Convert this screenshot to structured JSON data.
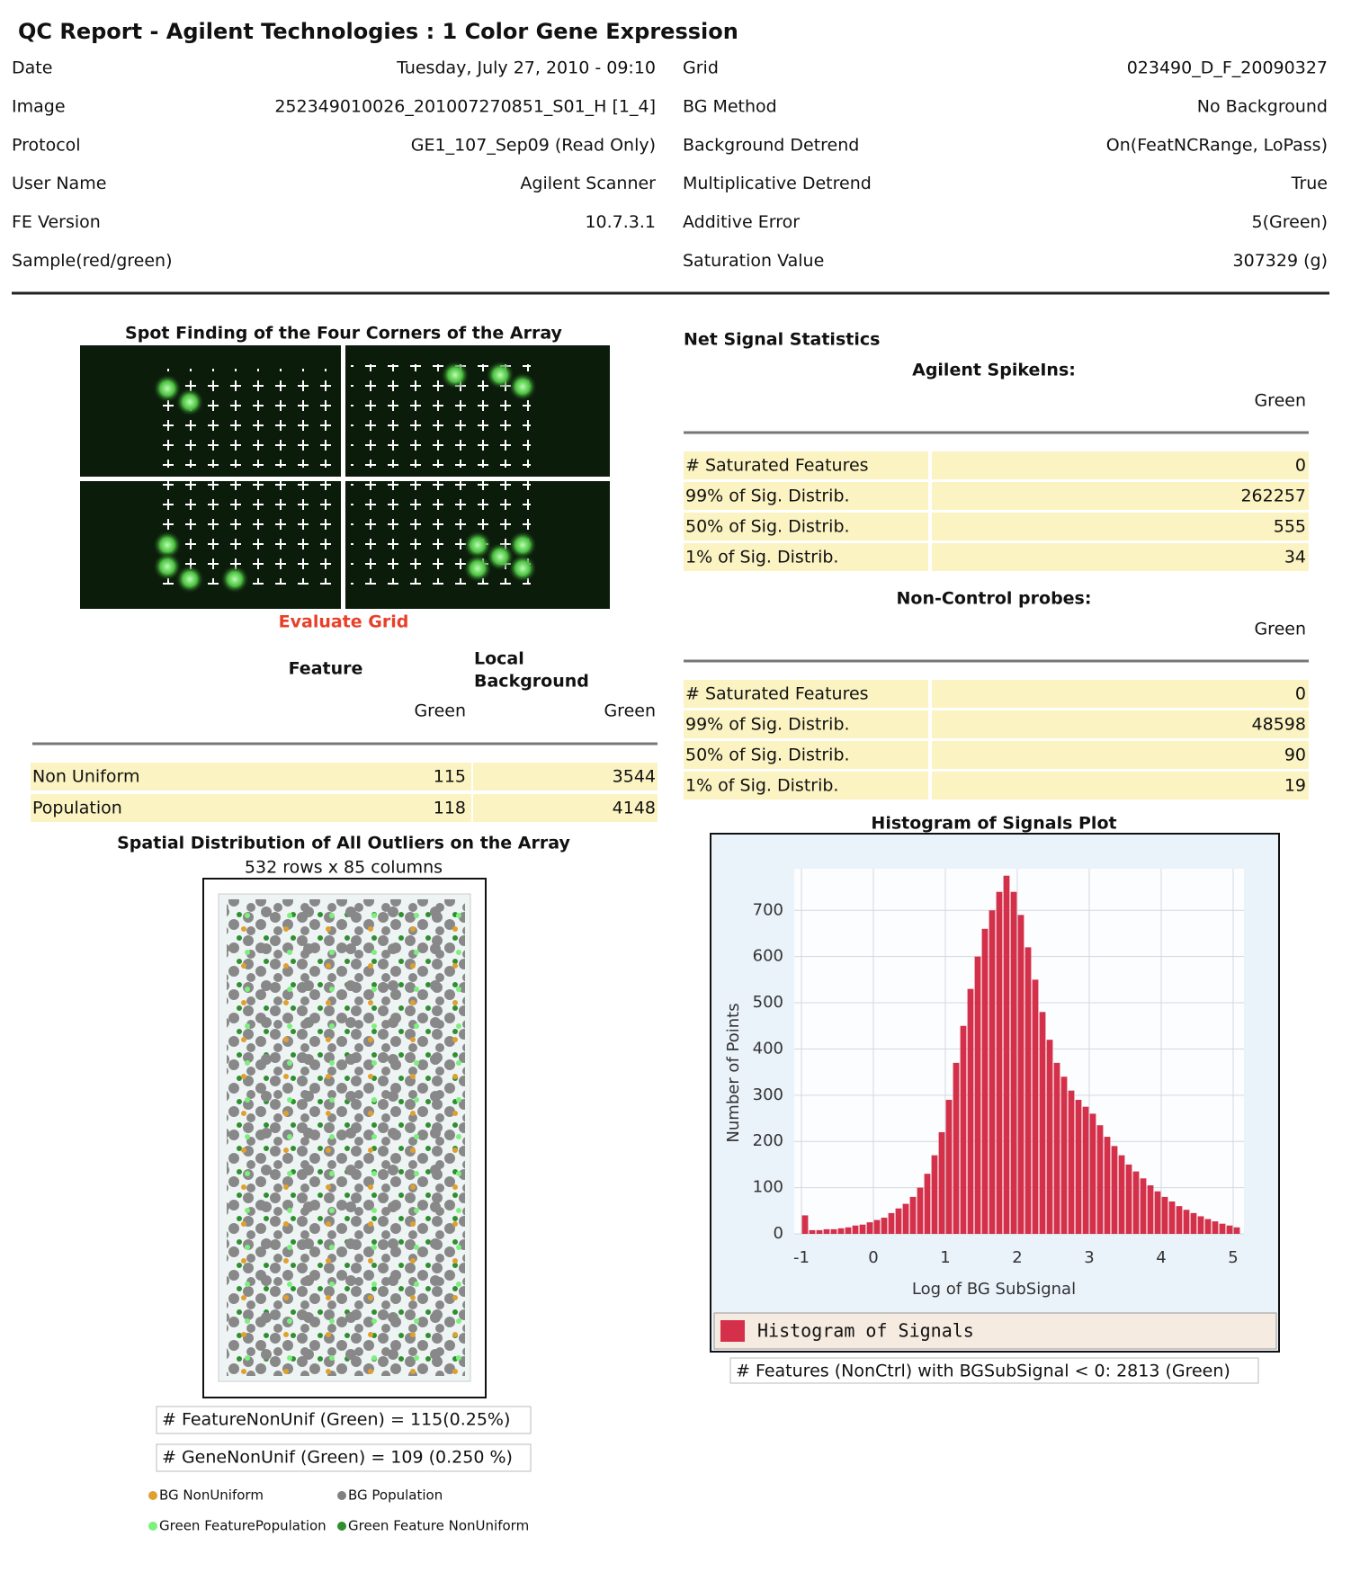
{
  "header": {
    "title": "QC Report - Agilent Technologies : 1 Color Gene Expression"
  },
  "info": {
    "left": [
      {
        "label": "Date",
        "value": "Tuesday, July 27, 2010 - 09:10"
      },
      {
        "label": "Image",
        "value": "252349010026_201007270851_S01_H [1_4]"
      },
      {
        "label": "Protocol",
        "value": "GE1_107_Sep09 (Read Only)"
      },
      {
        "label": "User Name",
        "value": "Agilent Scanner"
      },
      {
        "label": "FE Version",
        "value": "10.7.3.1"
      },
      {
        "label": "Sample(red/green)"
      }
    ],
    "right": [
      {
        "label": "Grid",
        "value": "023490_D_F_20090327"
      },
      {
        "label": "BG Method",
        "value": "No Background"
      },
      {
        "label": "Background Detrend",
        "value": "On(FeatNCRange, LoPass)"
      },
      {
        "label": "Multiplicative Detrend",
        "value": "True"
      },
      {
        "label": "Additive Error",
        "value": "5(Green)"
      },
      {
        "label": "Saturation Value",
        "value": "307329 (g)"
      }
    ]
  },
  "spot_finding": {
    "title": "Spot Finding of the Four Corners of the Array",
    "link": "Evaluate Grid"
  },
  "local_background": {
    "feature_header": "Feature",
    "background_header": [
      "Local",
      "Background"
    ],
    "subheaders": [
      "Green",
      "Green"
    ],
    "rows": [
      {
        "label": "Non Uniform",
        "values": [
          115,
          3544
        ]
      },
      {
        "label": "Population",
        "values": [
          118,
          4148
        ]
      }
    ]
  },
  "spatial": {
    "title": "Spatial Distribution of All Outliers on the Array",
    "subtitle": "532 rows x 85 columns",
    "stats": [
      "# FeatureNonUnif (Green) = 115(0.25%)",
      "# GeneNonUnif (Green) = 109 (0.250 %)"
    ],
    "legend": [
      {
        "name": "BG NonUniform",
        "color": "#e0a030"
      },
      {
        "name": "BG Population",
        "color": "#808080"
      },
      {
        "name": "Green FeaturePopulation",
        "color": "#7cf07c"
      },
      {
        "name": "Green Feature NonUniform",
        "color": "#2f8f2f"
      }
    ]
  },
  "net_signal": {
    "title": "Net Signal Statistics",
    "sections": [
      {
        "heading": "Agilent SpikeIns:",
        "column": "Green",
        "rows": [
          {
            "label": "# Saturated Features",
            "value": 0
          },
          {
            "label": "99% of Sig. Distrib.",
            "value": 262257
          },
          {
            "label": "50% of Sig. Distrib.",
            "value": 555
          },
          {
            "label": "1% of Sig. Distrib.",
            "value": 34
          }
        ]
      },
      {
        "heading": "Non-Control probes:",
        "column": "Green",
        "rows": [
          {
            "label": "# Saturated Features",
            "value": 0
          },
          {
            "label": "99% of Sig. Distrib.",
            "value": 48598
          },
          {
            "label": "50% of Sig. Distrib.",
            "value": 90
          },
          {
            "label": "1% of Sig. Distrib.",
            "value": 19
          }
        ]
      }
    ]
  },
  "chart_data": {
    "type": "histogram",
    "title": "Histogram of Signals Plot",
    "x_label": "Log of BG SubSignal",
    "y_label": "Number of Points",
    "series": [
      {
        "name": "Histogram of Signals",
        "color": "#d4304a",
        "values": [
          40,
          8,
          8,
          10,
          10,
          12,
          14,
          18,
          20,
          25,
          30,
          35,
          45,
          55,
          65,
          80,
          100,
          130,
          170,
          220,
          290,
          370,
          450,
          530,
          600,
          660,
          700,
          740,
          775,
          740,
          690,
          620,
          550,
          480,
          420,
          370,
          340,
          310,
          290,
          275,
          260,
          235,
          210,
          190,
          170,
          150,
          135,
          120,
          105,
          92,
          80,
          70,
          60,
          52,
          45,
          38,
          32,
          27,
          22,
          18,
          14
        ]
      }
    ],
    "bins": [
      -1,
      -0.9,
      -0.8,
      -0.7,
      -0.6,
      -0.5,
      -0.4,
      -0.3,
      -0.2,
      -0.1,
      0,
      0.1,
      0.2,
      0.3,
      0.4,
      0.5,
      0.6,
      0.7,
      0.8,
      0.9,
      1,
      1.1,
      1.2,
      1.3,
      1.4,
      1.5,
      1.6,
      1.7,
      1.8,
      1.9,
      2,
      2.1,
      2.2,
      2.3,
      2.4,
      2.5,
      2.6,
      2.7,
      2.8,
      2.9,
      3,
      3.1,
      3.2,
      3.3,
      3.4,
      3.5,
      3.6,
      3.7,
      3.8,
      3.9,
      4,
      4.1,
      4.2,
      4.3,
      4.4,
      4.5,
      4.6,
      4.7,
      4.8,
      4.9,
      5,
      5.1
    ],
    "xlim": [
      -1.1,
      5.15
    ],
    "ylim": [
      0,
      790
    ],
    "xticks": [
      -1,
      0,
      1,
      2,
      3,
      4,
      5
    ],
    "yticks": [
      0,
      100,
      200,
      300,
      400,
      500,
      600,
      700
    ],
    "grid": true,
    "note": "# Features (NonCtrl) with BGSubSignal < 0: 2813 (Green)"
  }
}
